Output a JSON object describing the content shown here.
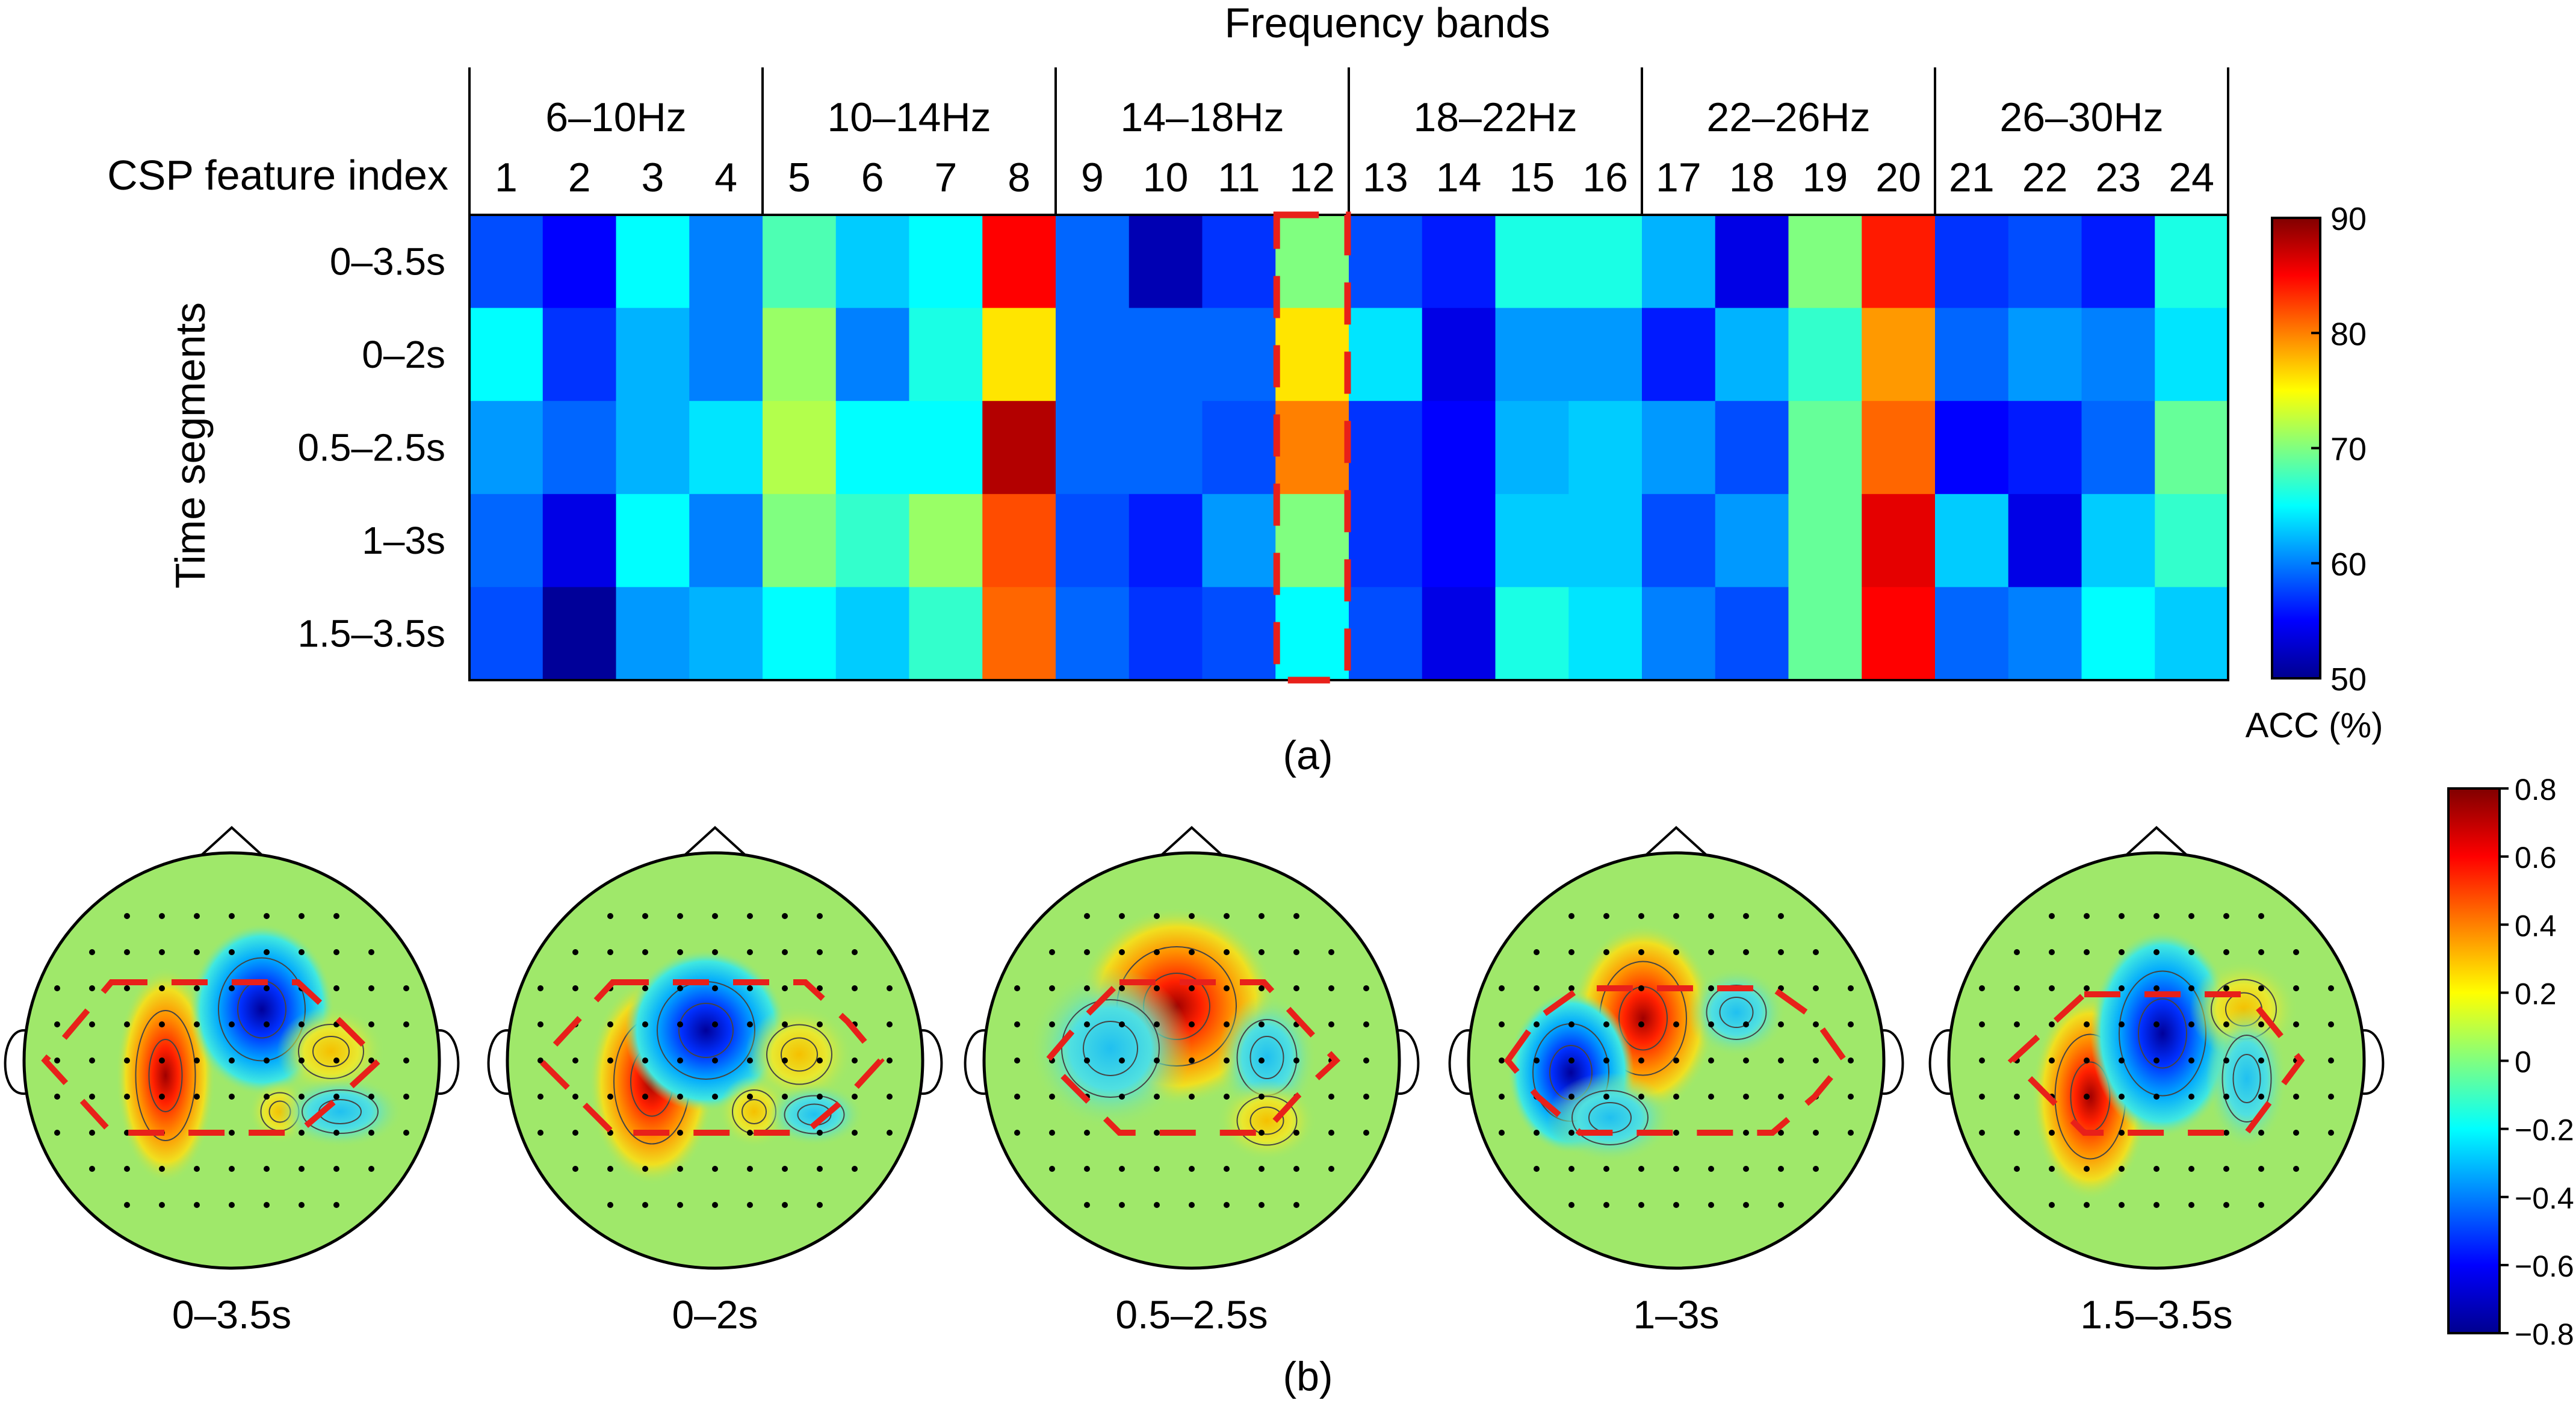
{
  "panel_a": {
    "title": "Frequency bands",
    "row_axis_title": "CSP feature index",
    "y_axis_label": "Time segments",
    "caption": "(a)",
    "colorbar_label": "ACC (%)",
    "colorbar_ticks": [
      "90",
      "80",
      "70",
      "60",
      "50"
    ]
  },
  "panel_b": {
    "caption": "(b)",
    "colorbar_ticks": [
      "0.8",
      "0.6",
      "0.4",
      "0.2",
      "0",
      "−0.2",
      "−0.4",
      "−0.6",
      "−0.8"
    ]
  },
  "chart_data": [
    {
      "type": "heatmap",
      "title": "Frequency bands",
      "xlabel": "CSP feature index",
      "ylabel": "Time segments",
      "frequency_bands": [
        "6–10Hz",
        "10–14Hz",
        "14–18Hz",
        "18–22Hz",
        "22–26Hz",
        "26–30Hz"
      ],
      "x_categories": [
        "1",
        "2",
        "3",
        "4",
        "5",
        "6",
        "7",
        "8",
        "9",
        "10",
        "11",
        "12",
        "13",
        "14",
        "15",
        "16",
        "17",
        "18",
        "19",
        "20",
        "21",
        "22",
        "23",
        "24"
      ],
      "y_categories": [
        "0–3.5s",
        "0–2s",
        "0.5–2.5s",
        "1–3s",
        "1.5–3.5s"
      ],
      "values": [
        [
          58,
          55,
          65,
          60,
          68,
          63,
          65,
          85,
          59,
          52,
          57,
          70,
          58,
          56,
          66,
          66,
          62,
          54,
          70,
          84,
          57,
          58,
          56,
          66
        ],
        [
          65,
          57,
          62,
          60,
          71,
          60,
          66,
          76,
          59,
          59,
          59,
          76,
          64,
          54,
          61,
          61,
          56,
          62,
          67,
          79,
          59,
          61,
          60,
          64
        ],
        [
          61,
          59,
          62,
          64,
          72,
          65,
          65,
          88,
          59,
          59,
          58,
          80,
          57,
          55,
          62,
          63,
          61,
          58,
          69,
          81,
          55,
          56,
          59,
          69
        ],
        [
          59,
          54,
          65,
          60,
          70,
          67,
          71,
          82,
          58,
          56,
          61,
          70,
          57,
          55,
          63,
          63,
          58,
          61,
          69,
          86,
          63,
          54,
          63,
          67
        ],
        [
          58,
          51,
          61,
          62,
          65,
          63,
          67,
          81,
          59,
          57,
          58,
          65,
          58,
          54,
          66,
          64,
          60,
          58,
          69,
          85,
          59,
          60,
          65,
          63
        ]
      ],
      "highlighted_column": "12",
      "colorbar": {
        "label": "ACC (%)",
        "range": [
          50,
          90
        ]
      }
    },
    {
      "type": "heatmap",
      "description_kind": "scalp topographic maps",
      "maps": [
        "0–3.5s",
        "0–2s",
        "0.5–2.5s",
        "1–3s",
        "1.5–3.5s"
      ],
      "colorbar": {
        "range": [
          -0.8,
          0.8
        ]
      }
    }
  ]
}
